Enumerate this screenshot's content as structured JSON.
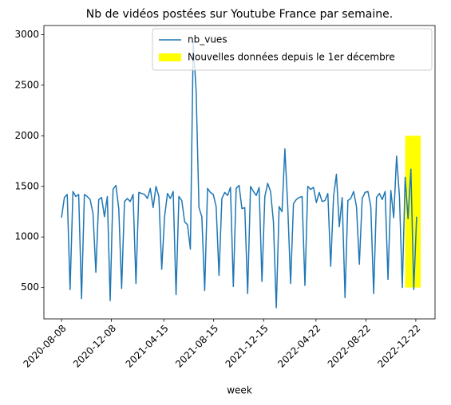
{
  "chart_data": {
    "type": "line",
    "title": "Nb de vidéos postées sur Youtube France par semaine.",
    "xlabel": "week",
    "x": [
      "2020-08-08",
      "2020-08-15",
      "2020-08-22",
      "2020-08-29",
      "2020-09-05",
      "2020-09-12",
      "2020-09-19",
      "2020-09-26",
      "2020-10-03",
      "2020-10-10",
      "2020-10-17",
      "2020-10-24",
      "2020-10-31",
      "2020-11-07",
      "2020-11-14",
      "2020-11-21",
      "2020-11-28",
      "2020-12-05",
      "2020-12-12",
      "2020-12-19",
      "2020-12-26",
      "2021-01-02",
      "2021-01-09",
      "2021-01-16",
      "2021-01-23",
      "2021-01-30",
      "2021-02-06",
      "2021-02-13",
      "2021-02-20",
      "2021-02-27",
      "2021-03-06",
      "2021-03-13",
      "2021-03-20",
      "2021-03-27",
      "2021-04-03",
      "2021-04-10",
      "2021-04-17",
      "2021-04-24",
      "2021-05-01",
      "2021-05-08",
      "2021-05-15",
      "2021-05-22",
      "2021-05-29",
      "2021-06-05",
      "2021-06-12",
      "2021-06-19",
      "2021-06-26",
      "2021-07-03",
      "2021-07-10",
      "2021-07-17",
      "2021-07-24",
      "2021-07-31",
      "2021-08-07",
      "2021-08-14",
      "2021-08-21",
      "2021-08-28",
      "2021-09-04",
      "2021-09-11",
      "2021-09-18",
      "2021-09-25",
      "2021-10-02",
      "2021-10-09",
      "2021-10-16",
      "2021-10-23",
      "2021-10-30",
      "2021-11-06",
      "2021-11-13",
      "2021-11-20",
      "2021-11-27",
      "2021-12-04",
      "2021-12-11",
      "2021-12-18",
      "2021-12-25",
      "2022-01-01",
      "2022-01-08",
      "2022-01-15",
      "2022-01-22",
      "2022-01-29",
      "2022-02-05",
      "2022-02-12",
      "2022-02-19",
      "2022-02-26",
      "2022-03-05",
      "2022-03-12",
      "2022-03-19",
      "2022-03-26",
      "2022-04-02",
      "2022-04-09",
      "2022-04-16",
      "2022-04-23",
      "2022-04-30",
      "2022-05-07",
      "2022-05-14",
      "2022-05-21",
      "2022-05-28",
      "2022-06-04",
      "2022-06-11",
      "2022-06-18",
      "2022-06-25",
      "2022-07-02",
      "2022-07-09",
      "2022-07-16",
      "2022-07-23",
      "2022-07-30",
      "2022-08-06",
      "2022-08-13",
      "2022-08-20",
      "2022-08-27",
      "2022-09-03",
      "2022-09-10",
      "2022-09-17",
      "2022-09-24",
      "2022-10-01",
      "2022-10-08",
      "2022-10-15",
      "2022-10-22",
      "2022-10-29",
      "2022-11-05",
      "2022-11-12",
      "2022-11-19",
      "2022-11-26",
      "2022-12-03",
      "2022-12-10",
      "2022-12-17",
      "2022-12-24"
    ],
    "series": [
      {
        "name": "nb_vues",
        "color": "#1f77b4",
        "values": [
          1190,
          1390,
          1420,
          480,
          1450,
          1400,
          1420,
          390,
          1420,
          1400,
          1370,
          1230,
          650,
          1370,
          1390,
          1200,
          1400,
          370,
          1470,
          1510,
          1280,
          490,
          1350,
          1380,
          1350,
          1420,
          540,
          1440,
          1430,
          1420,
          1380,
          1480,
          1290,
          1500,
          1400,
          680,
          1200,
          1430,
          1380,
          1450,
          430,
          1400,
          1360,
          1150,
          1120,
          880,
          2930,
          2450,
          1290,
          1200,
          470,
          1480,
          1440,
          1420,
          1300,
          620,
          1380,
          1440,
          1410,
          1490,
          510,
          1480,
          1510,
          1280,
          1290,
          440,
          1500,
          1450,
          1410,
          1490,
          560,
          1400,
          1530,
          1450,
          1150,
          300,
          1300,
          1250,
          1870,
          1300,
          540,
          1330,
          1370,
          1390,
          1400,
          520,
          1500,
          1470,
          1490,
          1340,
          1440,
          1350,
          1360,
          1430,
          710,
          1400,
          1620,
          1100,
          1390,
          400,
          1360,
          1380,
          1450,
          1300,
          730,
          1380,
          1440,
          1450,
          1300,
          440,
          1390,
          1430,
          1370,
          1450,
          580,
          1460,
          1190,
          1800,
          1400,
          500,
          1590,
          1180,
          1670,
          480,
          1200
        ]
      }
    ],
    "highlight": {
      "label": "Nouvelles données depuis le 1er décembre",
      "color": "#ffff00",
      "x": [
        "2022-11-26",
        "2023-01-03"
      ],
      "y": [
        500,
        2000
      ]
    },
    "xlim": [
      "2020-06-26",
      "2023-02-07"
    ],
    "xticks": [
      "2020-08-08",
      "2020-12-08",
      "2021-04-15",
      "2021-08-15",
      "2021-12-15",
      "2022-04-22",
      "2022-08-22",
      "2022-12-22"
    ],
    "ylim": [
      190,
      3090
    ],
    "yticks": [
      500,
      1000,
      1500,
      2000,
      2500,
      3000
    ],
    "legend": "upper right",
    "grid": false
  }
}
